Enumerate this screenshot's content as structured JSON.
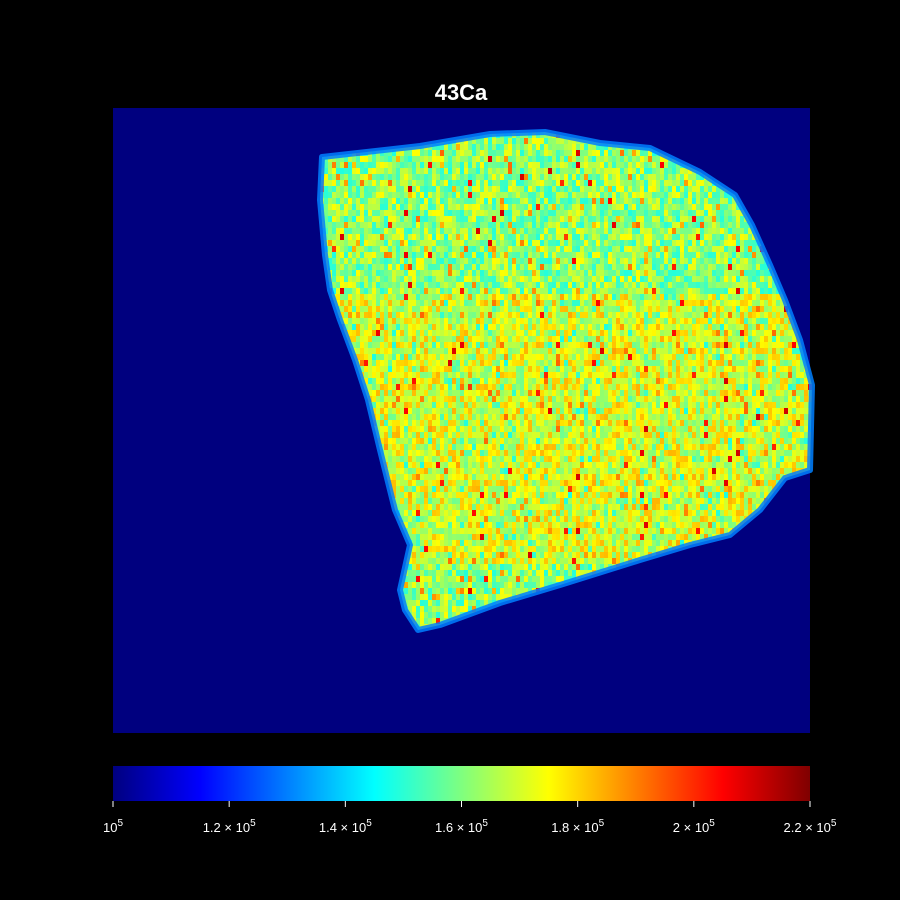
{
  "chart_data": {
    "type": "heatmap",
    "title": "43Ca",
    "background": "#000000",
    "map_background_color": "#00007f",
    "colormap": "jet",
    "colormap_stops": [
      "#00007f",
      "#0000ff",
      "#007fff",
      "#00ffff",
      "#7fff7f",
      "#ffff00",
      "#ff7f00",
      "#ff0000",
      "#7f0000"
    ],
    "colorbar": {
      "range": [
        100000,
        220000
      ],
      "ticks": [
        {
          "value": 100000,
          "mantissa": "",
          "exponent": "5",
          "base": "10"
        },
        {
          "value": 120000,
          "mantissa": "1.2",
          "exponent": "5",
          "base": "10"
        },
        {
          "value": 140000,
          "mantissa": "1.4",
          "exponent": "5",
          "base": "10"
        },
        {
          "value": 160000,
          "mantissa": "1.6",
          "exponent": "5",
          "base": "10"
        },
        {
          "value": 180000,
          "mantissa": "1.8",
          "exponent": "5",
          "base": "10"
        },
        {
          "value": 200000,
          "mantissa": "2",
          "exponent": "5",
          "base": "10"
        },
        {
          "value": 220000,
          "mantissa": "2.2",
          "exponent": "5",
          "base": "10"
        }
      ],
      "times_symbol": "×"
    },
    "grid": false,
    "axes_visible": false
  }
}
